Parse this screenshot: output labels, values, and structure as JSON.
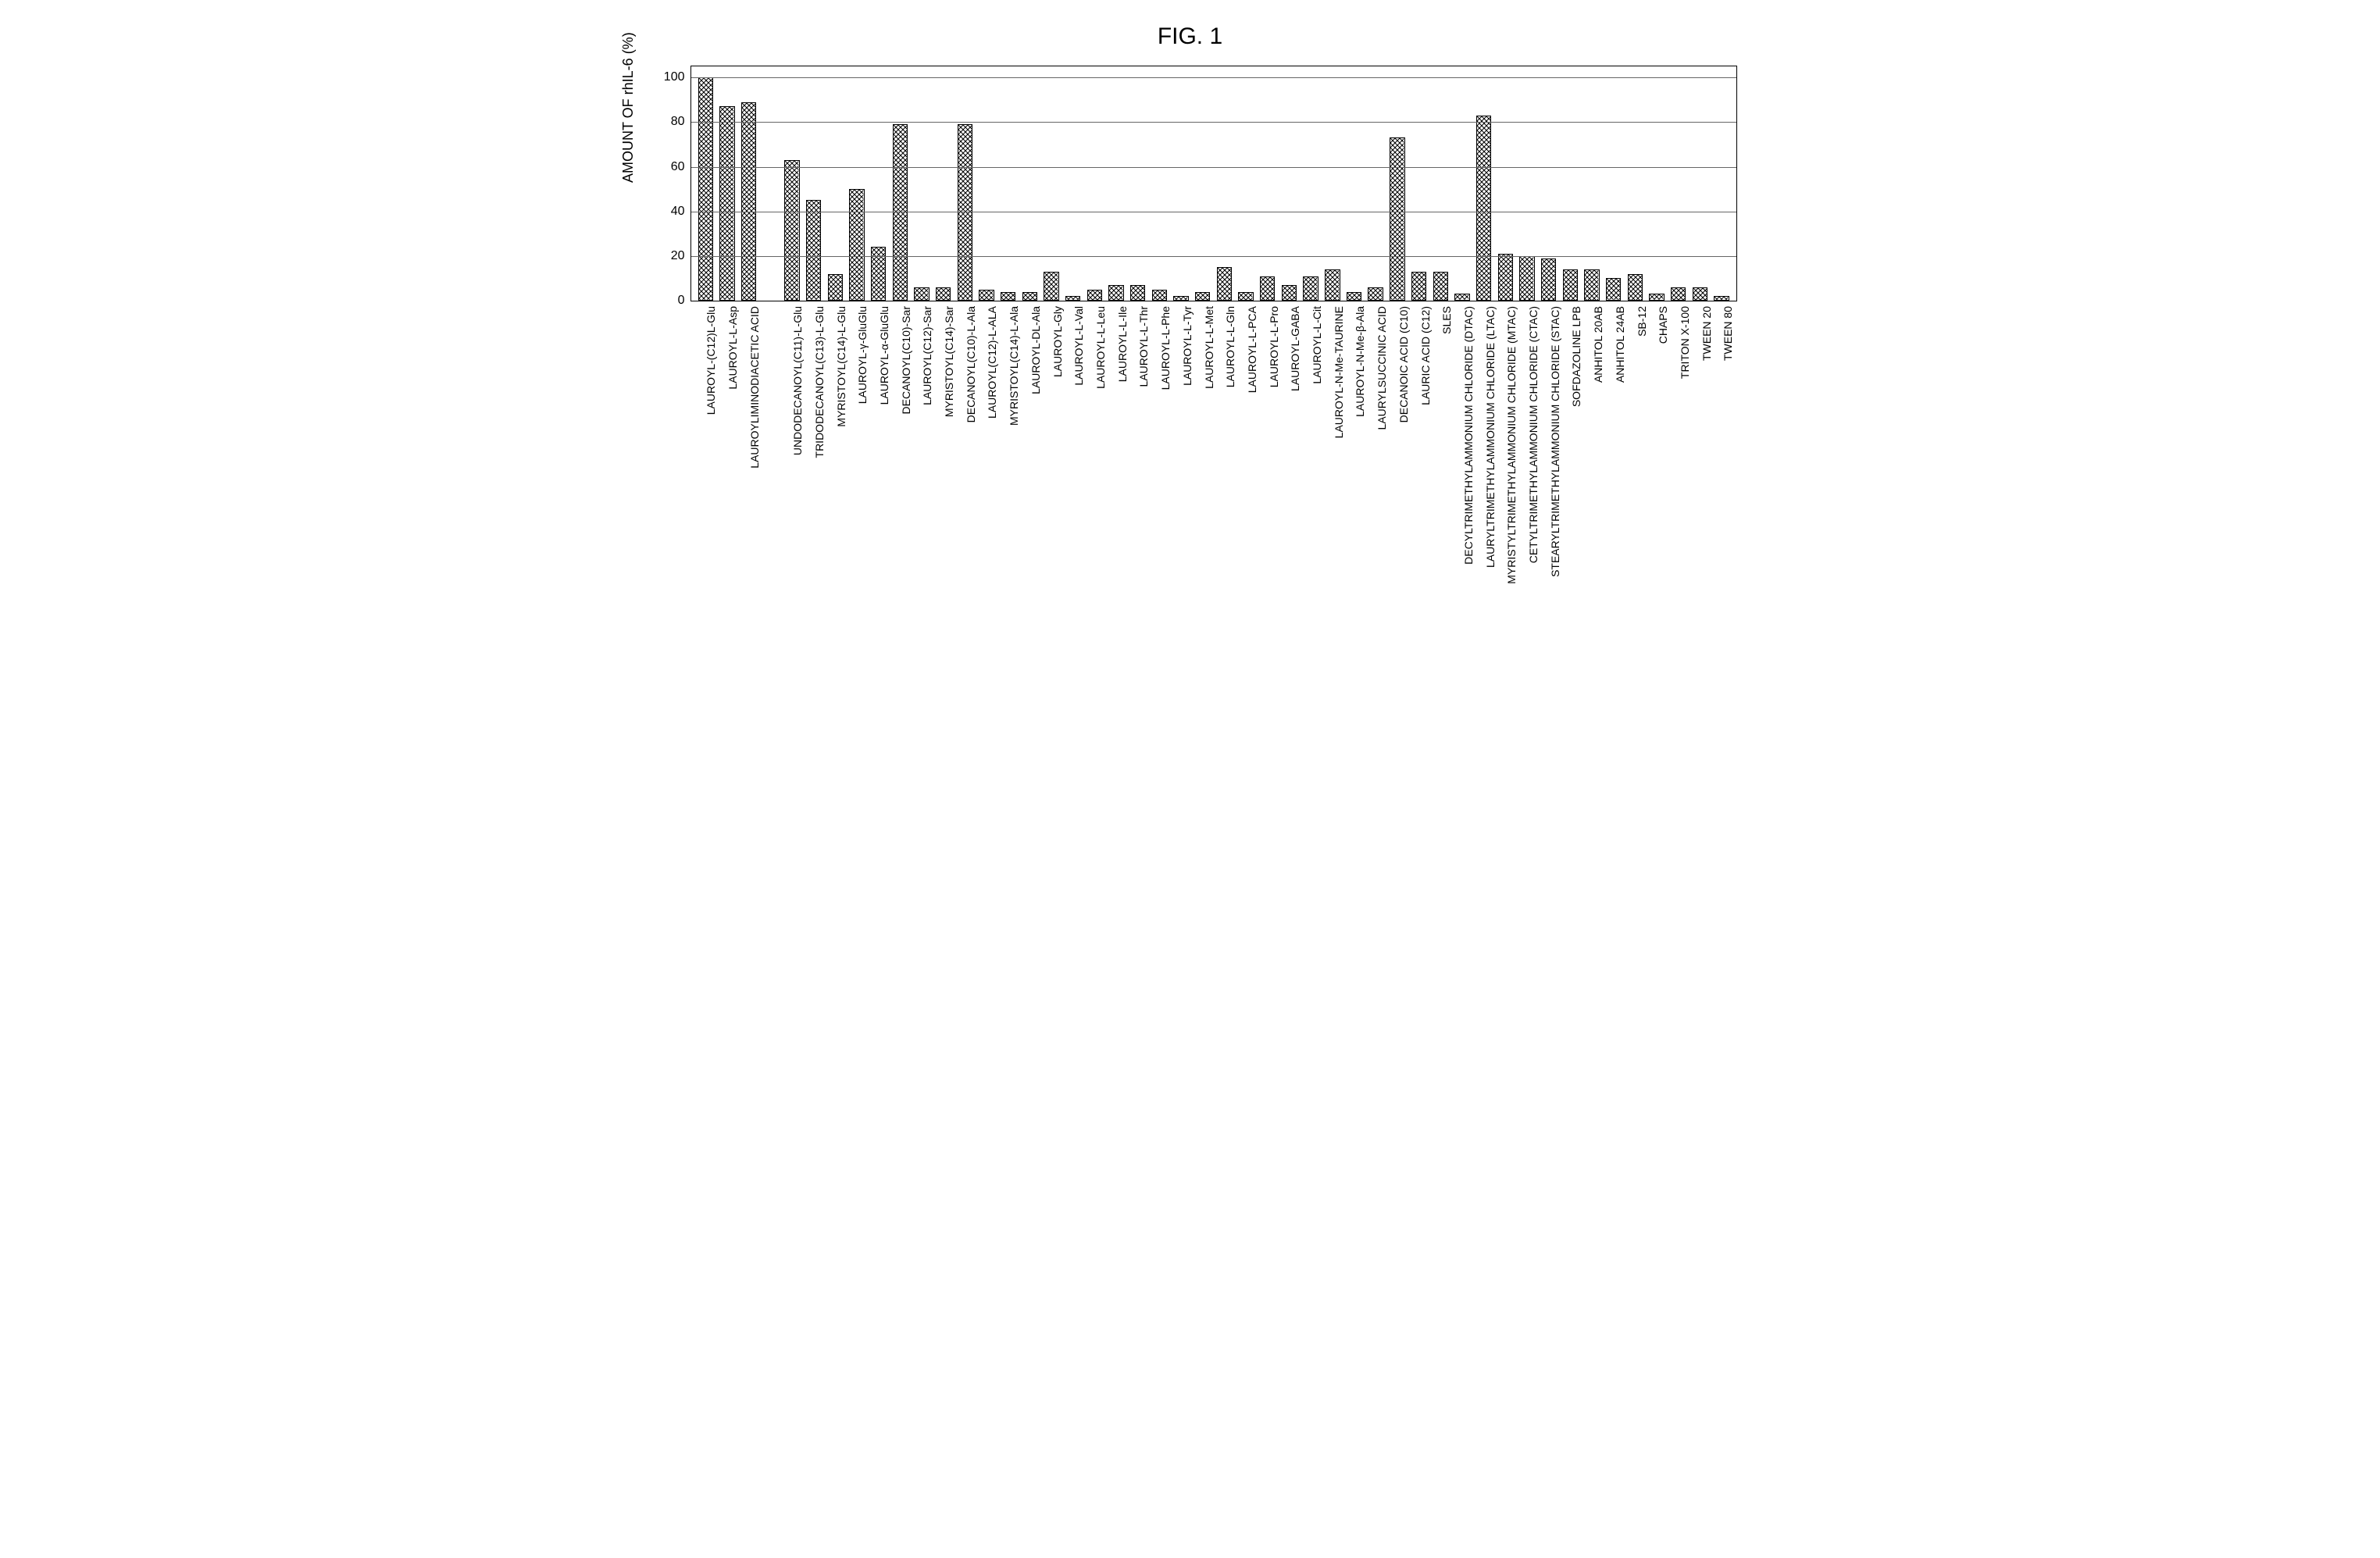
{
  "figure": {
    "title": "FIG. 1",
    "title_fontsize": 30
  },
  "chart": {
    "type": "bar",
    "ylabel": "AMOUNT OF rhIL-6 (%)",
    "label_fontsize": 18,
    "xlabel_fontsize": 14,
    "ytick_fontsize": 16,
    "ylim": [
      0,
      105
    ],
    "yticks": [
      0,
      20,
      40,
      60,
      80,
      100
    ],
    "background_color": "#ffffff",
    "grid_color": "#666666",
    "border_color": "#000000",
    "bar_fill": "crosshatch",
    "bar_border": "#000000",
    "bar_width": 0.7,
    "categories": [
      "LAUROYL-(C12)L-Glu",
      "LAUROYL-L-Asp",
      "LAUROYLIMINODIACETIC ACID",
      "",
      "UNDODECANOYL(C11)-L-Glu",
      "TRIDODECANOYL(C13)-L-Glu",
      "MYRISTOYL(C14)-L-Glu",
      "LAUROYL-γ-GluGlu",
      "LAUROYL-α-GluGlu",
      "DECANOYL(C10)-Sar",
      "LAUROYL(C12)-Sar",
      "MYRISTOYL(C14)-Sar",
      "DECANOYL(C10)-L-Ala",
      "LAUROYL(C12)-L-ALA",
      "MYRISTOYL(C14)-L-Ala",
      "LAUROYL-DL-Ala",
      "LAUROYL-Gly",
      "LAUROYL-L-Val",
      "LAUROYL-L-Leu",
      "LAUROYL-L-Ile",
      "LAUROYL-L-Thr",
      "LAUROYL-L-Phe",
      "LAUROYL-L-Tyr",
      "LAUROYL-L-Met",
      "LAUROYL-L-Gln",
      "LAUROYL-L-PCA",
      "LAUROYL-L-Pro",
      "LAUROYL-GABA",
      "LAUROYL-L-Cit",
      "LAUROYL-N-Me-TAURINE",
      "LAUROYL-N-Me-β-Ala",
      "LAURYLSUCCINIC ACID",
      "DECANOIC ACID (C10)",
      "LAURIC ACID (C12)",
      "SLES",
      "DECYLTRIMETHYLAMMONIUM CHLORIDE (DTAC)",
      "LAURYLTRIMETHYLAMMONIUM CHLORIDE (LTAC)",
      "MYRISTYLTRIMETHYLAMMONIUM CHLORIDE (MTAC)",
      "CETYLTRIMETHYLAMMONIUM CHLORIDE (CTAC)",
      "STEARYLTRIMETHYLAMMONIUM CHLORIDE (STAC)",
      "SOFDAZOLINE LPB",
      "ANHITOL 20AB",
      "ANHITOL 24AB",
      "SB-12",
      "CHAPS",
      "TRITON X-100",
      "TWEEN 20",
      "TWEEN 80"
    ],
    "values": [
      100,
      87,
      89,
      null,
      63,
      45,
      12,
      50,
      24,
      79,
      6,
      6,
      79,
      5,
      4,
      4,
      13,
      2,
      5,
      7,
      7,
      5,
      2,
      4,
      15,
      4,
      11,
      7,
      11,
      14,
      4,
      6,
      73,
      13,
      13,
      3,
      83,
      21,
      20,
      19,
      14,
      14,
      10,
      12,
      3,
      6,
      6,
      2
    ]
  }
}
